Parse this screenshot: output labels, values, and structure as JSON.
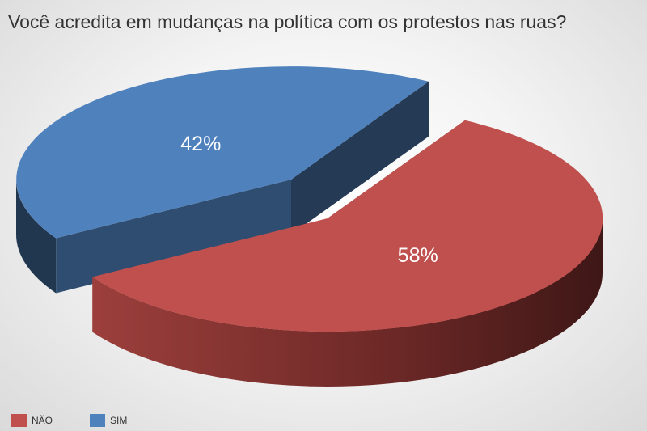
{
  "chart_data": {
    "type": "pie",
    "title": "Você acredita em mudanças na política com os protestos nas ruas?",
    "categories": [
      "NÃO",
      "SIM"
    ],
    "values": [
      58,
      42
    ],
    "data_labels": [
      "58%",
      "42%"
    ],
    "colors": {
      "NÃO": "#c0504d",
      "SIM": "#4f81bd"
    },
    "exploded": "SIM",
    "style": "3d",
    "legend": "bottom-left"
  }
}
